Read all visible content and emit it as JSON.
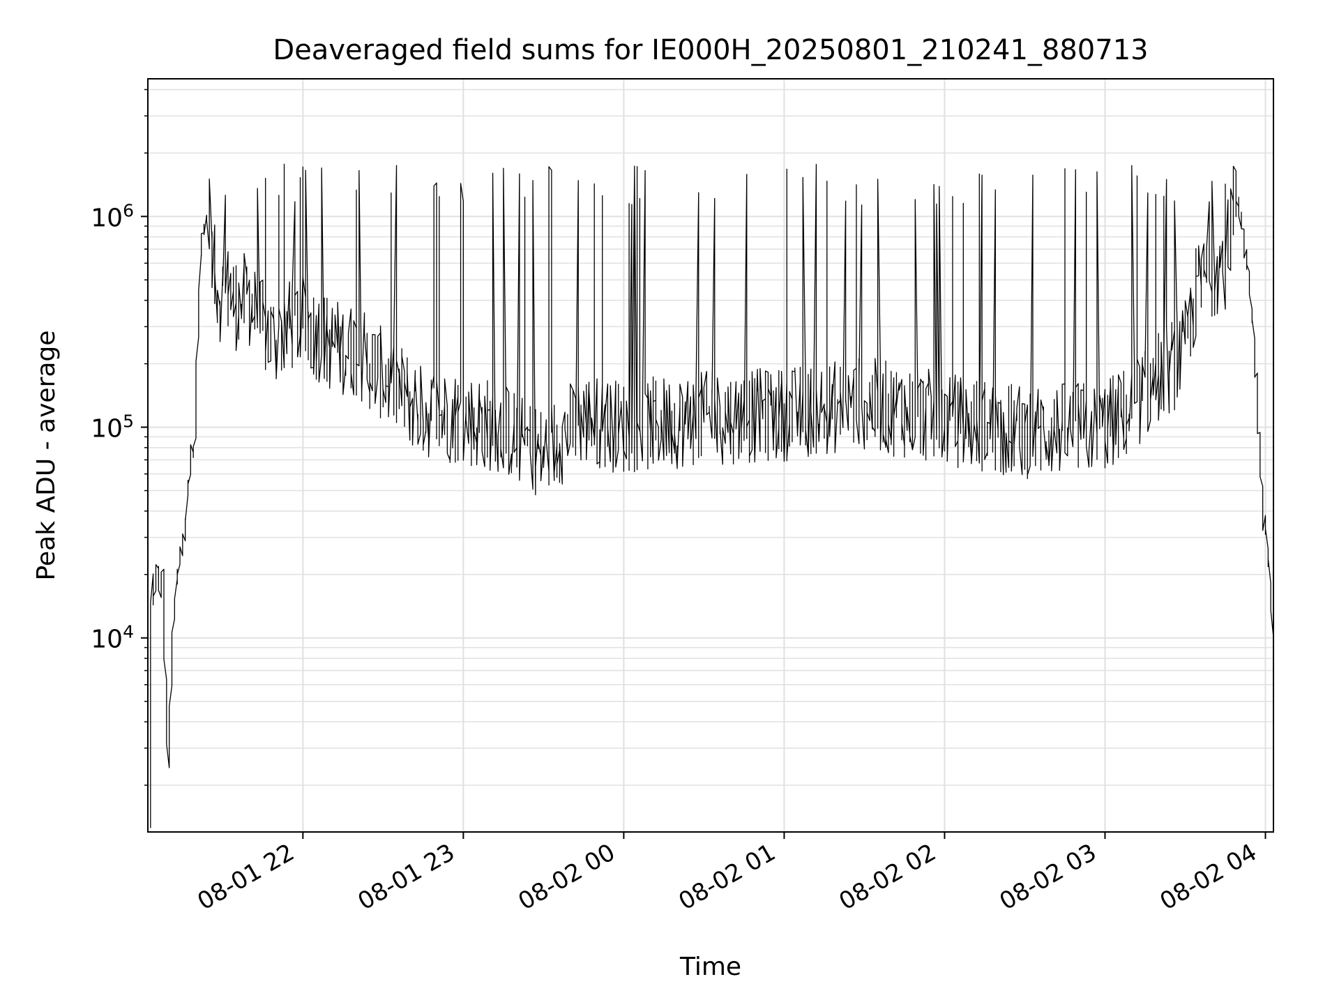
{
  "chart_data": {
    "type": "line",
    "title": "Deaveraged field sums for IE000H_20250801_210241_880713",
    "xlabel": "Time",
    "ylabel": "Peak ADU - average",
    "y_scale": "log",
    "ylim": [
      1200,
      4500000
    ],
    "xlim": [
      "2025-08-01 21:02",
      "2025-08-02 04:03"
    ],
    "x_ticks": [
      {
        "value": "2025-08-01 22:00",
        "label": "08-01 22"
      },
      {
        "value": "2025-08-01 23:00",
        "label": "08-01 23"
      },
      {
        "value": "2025-08-02 00:00",
        "label": "08-02 00"
      },
      {
        "value": "2025-08-02 01:00",
        "label": "08-02 01"
      },
      {
        "value": "2025-08-02 02:00",
        "label": "08-02 02"
      },
      {
        "value": "2025-08-02 03:00",
        "label": "08-02 03"
      },
      {
        "value": "2025-08-02 04:00",
        "label": "08-02 04"
      }
    ],
    "y_ticks": [
      {
        "value": 10000,
        "base": "10",
        "exp": "4"
      },
      {
        "value": 100000,
        "base": "10",
        "exp": "5"
      },
      {
        "value": 1000000,
        "base": "10",
        "exp": "6"
      }
    ],
    "grid": true,
    "legend": "none",
    "line_color": "#000000",
    "grid_color": "#e0e0e0",
    "series": [
      {
        "x": [
          "2025-08-01 21:03",
          "2025-08-01 21:04",
          "2025-08-01 21:05",
          "2025-08-01 21:06",
          "2025-08-01 21:07",
          "2025-08-01 21:08",
          "2025-08-01 21:10",
          "2025-08-01 21:12",
          "2025-08-01 21:14",
          "2025-08-01 21:16",
          "2025-08-01 21:17",
          "2025-08-01 21:18",
          "2025-08-01 21:20",
          "2025-08-01 21:22",
          "2025-08-01 21:24",
          "2025-08-01 21:25",
          "2025-08-01 21:27",
          "2025-08-01 21:30",
          "2025-08-01 21:33",
          "2025-08-01 21:36",
          "2025-08-01 21:40",
          "2025-08-01 21:45",
          "2025-08-01 21:50",
          "2025-08-01 21:55",
          "2025-08-01 22:00",
          "2025-08-01 22:10",
          "2025-08-01 22:20",
          "2025-08-01 22:30",
          "2025-08-01 22:45",
          "2025-08-01 23:00",
          "2025-08-01 23:15",
          "2025-08-01 23:30",
          "2025-08-01 23:45",
          "2025-08-02 00:00",
          "2025-08-02 00:30",
          "2025-08-02 01:00",
          "2025-08-02 01:30",
          "2025-08-02 02:00",
          "2025-08-02 02:30",
          "2025-08-02 03:00",
          "2025-08-02 03:10",
          "2025-08-02 03:20",
          "2025-08-02 03:30",
          "2025-08-02 03:35",
          "2025-08-02 03:40",
          "2025-08-02 03:45",
          "2025-08-02 03:48",
          "2025-08-02 03:50",
          "2025-08-02 03:53",
          "2025-08-02 03:56",
          "2025-08-02 03:58",
          "2025-08-02 04:00",
          "2025-08-02 04:02",
          "2025-08-02 04:03"
        ],
        "y": [
          1200,
          20000,
          14000,
          23000,
          16000,
          20000,
          2500,
          12000,
          22000,
          30000,
          45000,
          60000,
          90000,
          600000,
          1000000,
          900000,
          550000,
          420000,
          450000,
          380000,
          420000,
          300000,
          260000,
          300000,
          320000,
          250000,
          230000,
          180000,
          120000,
          110000,
          100000,
          75000,
          110000,
          100000,
          110000,
          115000,
          130000,
          110000,
          95000,
          100000,
          120000,
          170000,
          220000,
          450000,
          550000,
          600000,
          1000000,
          1200000,
          700000,
          300000,
          100000,
          35000,
          22000,
          10000
        ]
      }
    ]
  }
}
